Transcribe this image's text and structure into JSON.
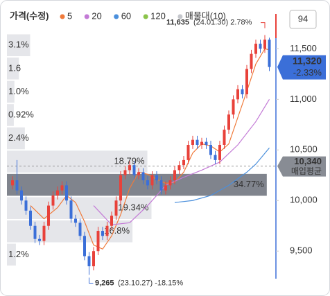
{
  "chart_data": {
    "type": "candlestick",
    "legend_title": "가격(수정)",
    "ylim": [
      9200,
      11900
    ],
    "yticks": [
      {
        "value": 11500,
        "label": "11,500"
      },
      {
        "value": 11000,
        "label": "11,000"
      },
      {
        "value": 10500,
        "label": "10,500"
      },
      {
        "value": 10000,
        "label": "10,000"
      },
      {
        "value": 9500,
        "label": "9,500"
      }
    ],
    "up_color": "#e8413a",
    "down_color": "#3b6fd8",
    "open": [
      10150,
      10200,
      10100,
      10000,
      9900,
      9750,
      9620,
      9600,
      9750,
      9950,
      10050,
      10100,
      10150,
      10000,
      9820,
      9780,
      9650,
      9450,
      9350,
      9500,
      9700,
      9650,
      9750,
      9850,
      10000,
      10250,
      10300,
      10350,
      10250,
      10280,
      10200,
      10150,
      10250,
      10200,
      10100,
      10150,
      10200,
      10300,
      10350,
      10400,
      10550,
      10600,
      10550,
      10580,
      10550,
      10450,
      10400,
      10550,
      10700,
      10850,
      11000,
      11100,
      11050,
      11300,
      11450,
      11550,
      11500,
      11590
    ],
    "high": [
      10240,
      10400,
      10140,
      10040,
      9940,
      9790,
      9660,
      9790,
      9990,
      10090,
      10140,
      10190,
      10190,
      10040,
      9860,
      9820,
      9690,
      9490,
      9540,
      9740,
      9740,
      9790,
      9890,
      10040,
      10290,
      10340,
      10390,
      10390,
      10320,
      10320,
      10240,
      10290,
      10290,
      10240,
      10190,
      10240,
      10340,
      10390,
      10440,
      10590,
      10640,
      10640,
      10620,
      10620,
      10590,
      10490,
      10590,
      10740,
      10890,
      11040,
      11140,
      11140,
      11340,
      11490,
      11590,
      11590,
      11635,
      11610
    ],
    "low": [
      10110,
      10060,
      9960,
      9860,
      9710,
      9580,
      9560,
      9560,
      9710,
      9910,
      10010,
      10060,
      9960,
      9780,
      9740,
      9610,
      9410,
      9265,
      9310,
      9460,
      9610,
      9610,
      9710,
      9810,
      9960,
      10210,
      10260,
      10210,
      10210,
      10160,
      10110,
      10110,
      10160,
      10060,
      10060,
      10110,
      10160,
      10260,
      10310,
      10360,
      10510,
      10510,
      10510,
      10510,
      10410,
      10360,
      10360,
      10510,
      10660,
      10810,
      10960,
      11010,
      11010,
      11260,
      11410,
      11460,
      11460,
      11280
    ],
    "close": [
      10200,
      10100,
      10000,
      9900,
      9750,
      9620,
      9600,
      9750,
      9950,
      10050,
      10100,
      10150,
      10000,
      9820,
      9780,
      9650,
      9450,
      9350,
      9500,
      9700,
      9650,
      9750,
      9850,
      10000,
      10250,
      10300,
      10350,
      10250,
      10280,
      10200,
      10150,
      10250,
      10200,
      10100,
      10150,
      10200,
      10300,
      10350,
      10400,
      10550,
      10600,
      10550,
      10580,
      10550,
      10450,
      10400,
      10550,
      10700,
      10850,
      11000,
      11100,
      11050,
      11300,
      11450,
      11550,
      11500,
      11590,
      11320
    ],
    "ma": [
      {
        "name": "5",
        "color": "#f07a3a",
        "x": [
          4,
          7,
          10,
          12,
          14,
          16,
          18,
          20,
          22,
          24,
          26,
          28,
          30,
          32,
          34,
          36,
          38,
          40,
          42,
          44,
          46,
          48,
          50,
          52,
          54,
          56,
          57
        ],
        "values": [
          9950,
          9820,
          9930,
          10050,
          9980,
          9790,
          9560,
          9520,
          9650,
          9860,
          10120,
          10280,
          10260,
          10210,
          10170,
          10180,
          10280,
          10470,
          10560,
          10540,
          10480,
          10560,
          10820,
          11080,
          11350,
          11500,
          11490
        ]
      },
      {
        "name": "20",
        "color": "#c37ad6",
        "x": [
          18,
          22,
          26,
          30,
          34,
          38,
          42,
          46,
          50,
          54,
          57
        ],
        "values": [
          9950,
          9760,
          9780,
          9950,
          10150,
          10230,
          10300,
          10380,
          10550,
          10780,
          11000
        ]
      },
      {
        "name": "60",
        "color": "#4a8fdc",
        "x": [
          36,
          40,
          44,
          48,
          52,
          54,
          57
        ],
        "values": [
          9980,
          10000,
          10050,
          10150,
          10280,
          10360,
          10520
        ]
      },
      {
        "name": "120",
        "color": "#8bc34a",
        "x": [],
        "values": []
      }
    ],
    "volume_profile": {
      "name": "매물대(10)",
      "color": "#dcdee3",
      "highlight_color": "#80848d",
      "bins": [
        9350,
        9580,
        9810,
        10040,
        10270,
        10500,
        10730,
        10960,
        11190,
        11420,
        11650
      ],
      "values": [
        1.2,
        16.8,
        19.34,
        34.77,
        18.79,
        2.4,
        0.92,
        1.0,
        1.6,
        3.1
      ],
      "value_labels": [
        "1.2%",
        "16.8%",
        "19.34%",
        "34.77%",
        "18.79%",
        "2.4%",
        "0.92%",
        "1.0%",
        "1.6",
        "3.1%"
      ]
    },
    "high_mark": {
      "value": 11635,
      "label": "11,635",
      "detail": "(24.01.30) 2.78%"
    },
    "low_mark": {
      "value": 9265,
      "label": "9,265",
      "detail": "(23.10.27) -18.15%"
    },
    "current": {
      "value": 11320,
      "label": "11,320",
      "change": "-2.33%"
    },
    "average": {
      "value": 10340,
      "label": "10,340",
      "text": "매입평균"
    },
    "badge": "94"
  }
}
